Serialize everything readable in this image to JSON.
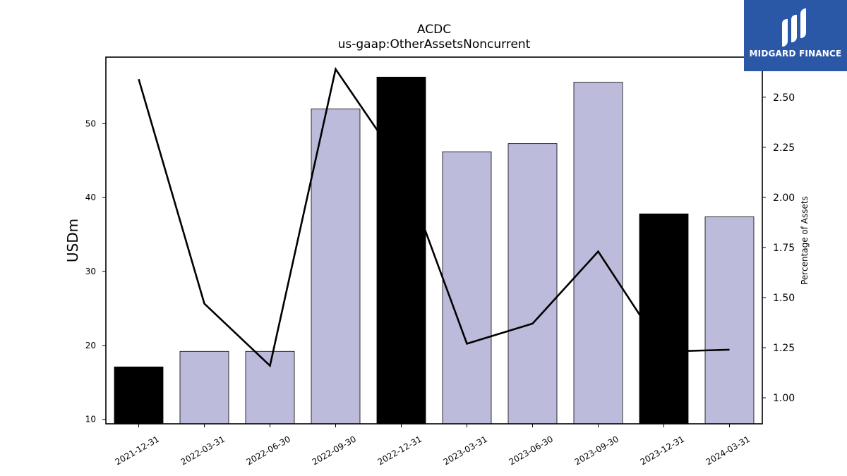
{
  "chart_data": {
    "type": "bar",
    "title": "ACDC",
    "subtitle": "us-gaap:OtherAssetsNoncurrent",
    "categories": [
      "2021-12-31",
      "2022-03-31",
      "2022-06-30",
      "2022-09-30",
      "2022-12-31",
      "2023-03-31",
      "2023-06-30",
      "2023-09-30",
      "2023-12-31",
      "2024-03-31"
    ],
    "series": [
      {
        "type": "bar",
        "axis": "left",
        "values": [
          17.1,
          19.2,
          19.2,
          52.0,
          56.3,
          46.2,
          47.3,
          55.6,
          37.8,
          37.4
        ],
        "highlight": [
          true,
          false,
          false,
          false,
          true,
          false,
          false,
          false,
          true,
          false
        ]
      },
      {
        "type": "line",
        "axis": "right",
        "values": [
          2.59,
          1.47,
          1.16,
          2.64,
          2.16,
          1.27,
          1.37,
          1.73,
          1.23,
          1.24
        ]
      }
    ],
    "ylabel": "USDm",
    "y2label": "Percentage of Assets",
    "ylim": [
      9.4,
      59.0
    ],
    "y2lim": [
      0.87,
      2.7
    ],
    "yticks": [
      10,
      20,
      30,
      40,
      50
    ],
    "y2ticks": [
      "1.00",
      "1.25",
      "1.50",
      "1.75",
      "2.00",
      "2.25",
      "2.50"
    ],
    "colors": {
      "bar": "#bdbbdb",
      "bar_highlight": "#000000",
      "line": "#000000"
    },
    "grid": false
  },
  "logo": {
    "text": "MIDGARD FINANCE",
    "bg": "#2b57a7"
  }
}
